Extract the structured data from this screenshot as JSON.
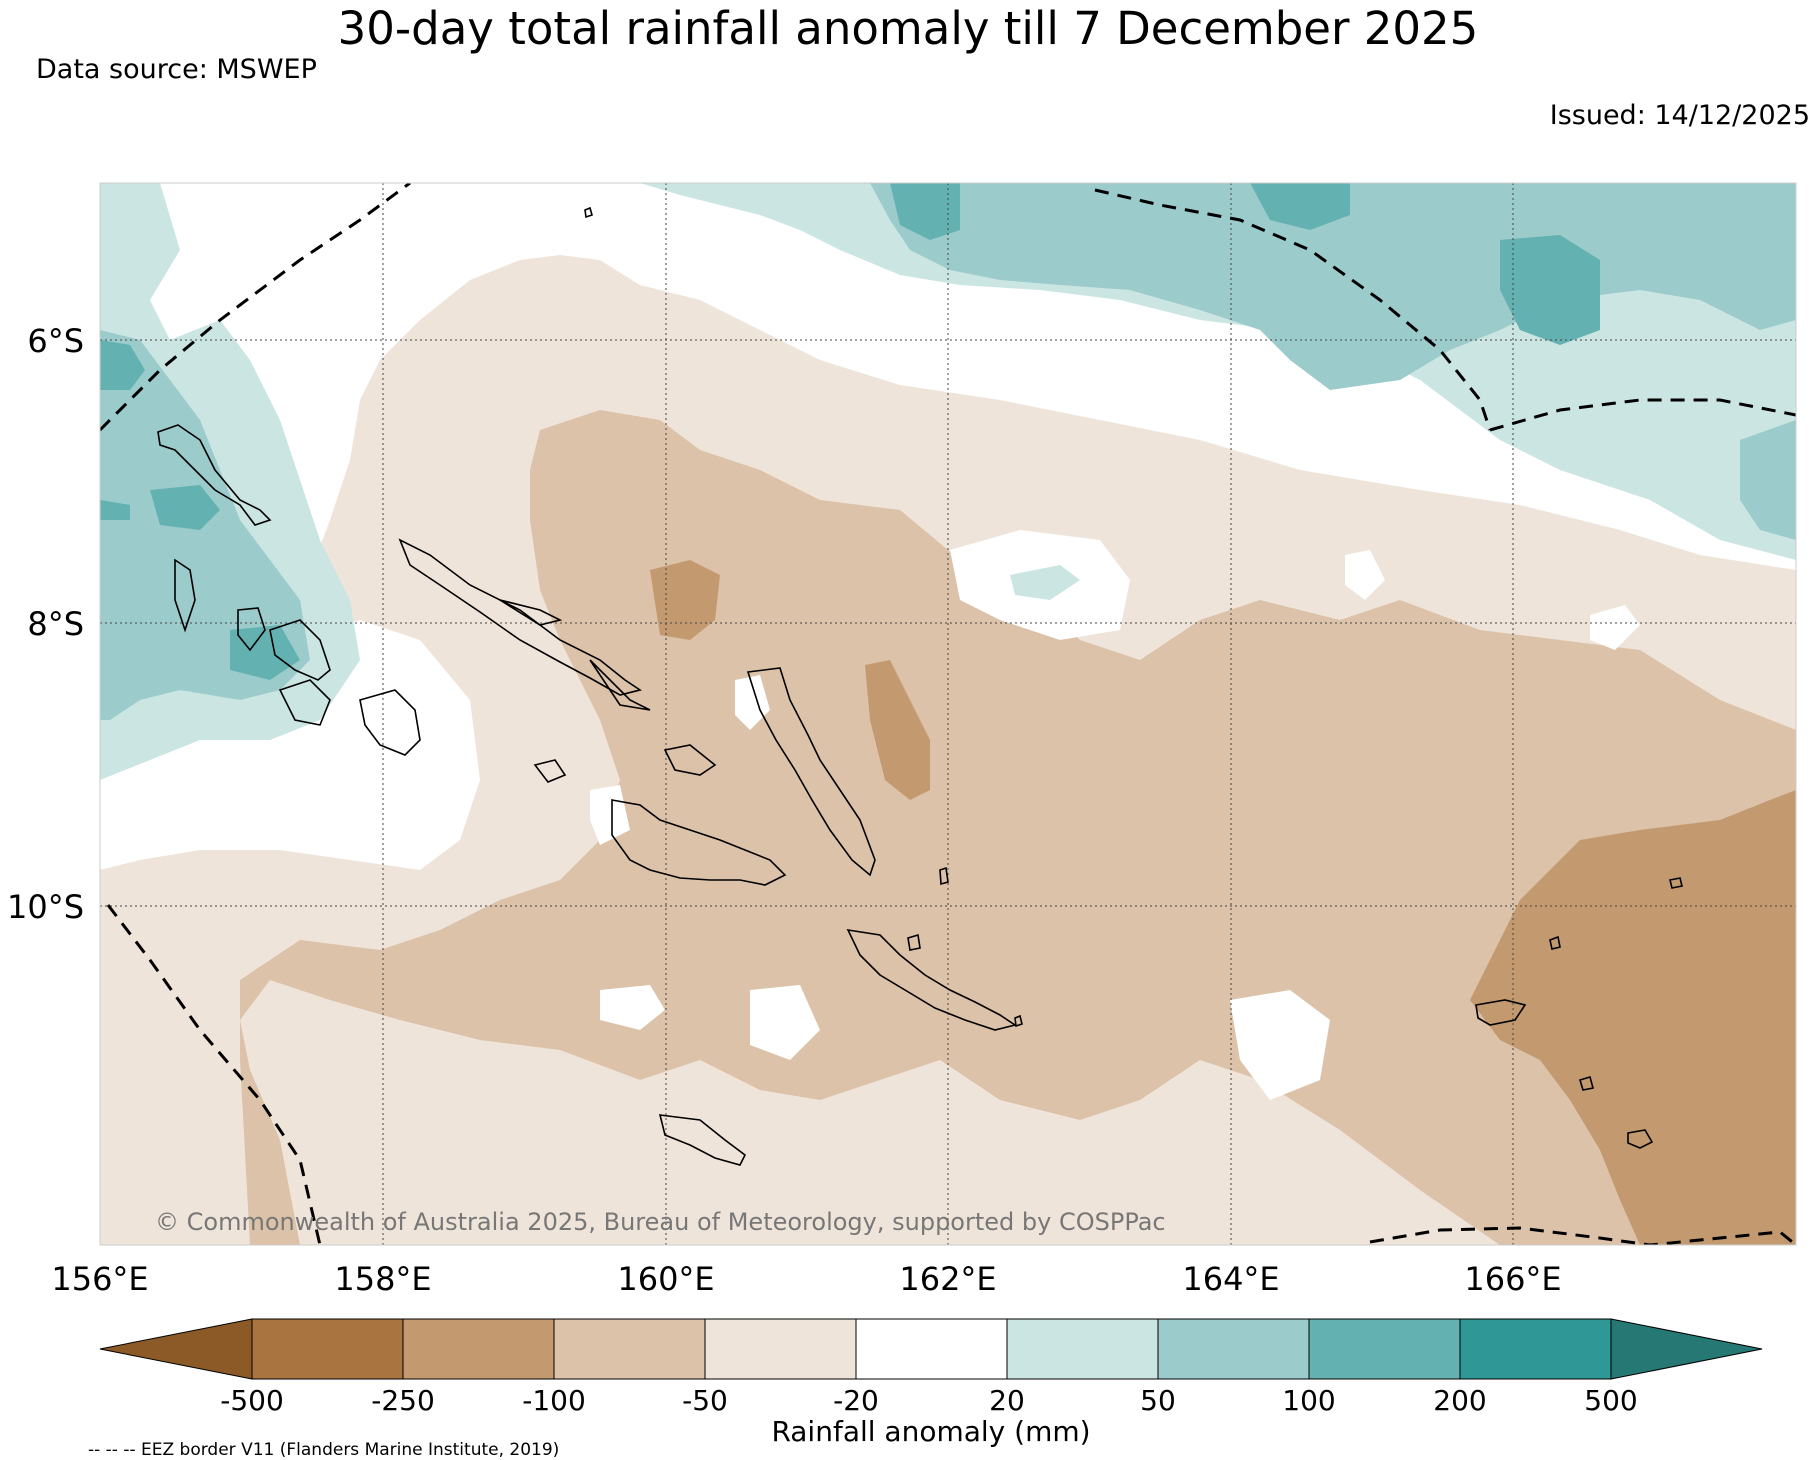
{
  "title": "30-day total rainfall anomaly till 7 December 2025",
  "source": "Data source: MSWEP",
  "issued": "Issued: 14/12/2025",
  "copyright": "© Commonwealth of Australia 2025, Bureau of Meteorology, supported by COSPPac",
  "map": {
    "lon_range": [
      156,
      168
    ],
    "lat_range": [
      -12.4,
      -4.9
    ],
    "lon_ticks": [
      "156°E",
      "158°E",
      "160°E",
      "162°E",
      "164°E",
      "166°E"
    ],
    "lat_ticks": [
      "6°S",
      "8°S",
      "10°S"
    ],
    "grid": true
  },
  "colorbar": {
    "label": "Rainfall anomaly (mm)",
    "tick_labels": [
      "-500",
      "-250",
      "-100",
      "-50",
      "-20",
      "20",
      "50",
      "100",
      "200",
      "500"
    ],
    "colors": [
      "#8c5a26",
      "#a97440",
      "#c39a70",
      "#dbc2a8",
      "#efe4da",
      "#ffffff",
      "#cbe5e3",
      "#9bcbcb",
      "#63b1b1",
      "#2f9795",
      "#257874"
    ]
  },
  "legend_note": "-- -- -- EEZ border V11 (Flanders Marine Institute, 2019)"
}
